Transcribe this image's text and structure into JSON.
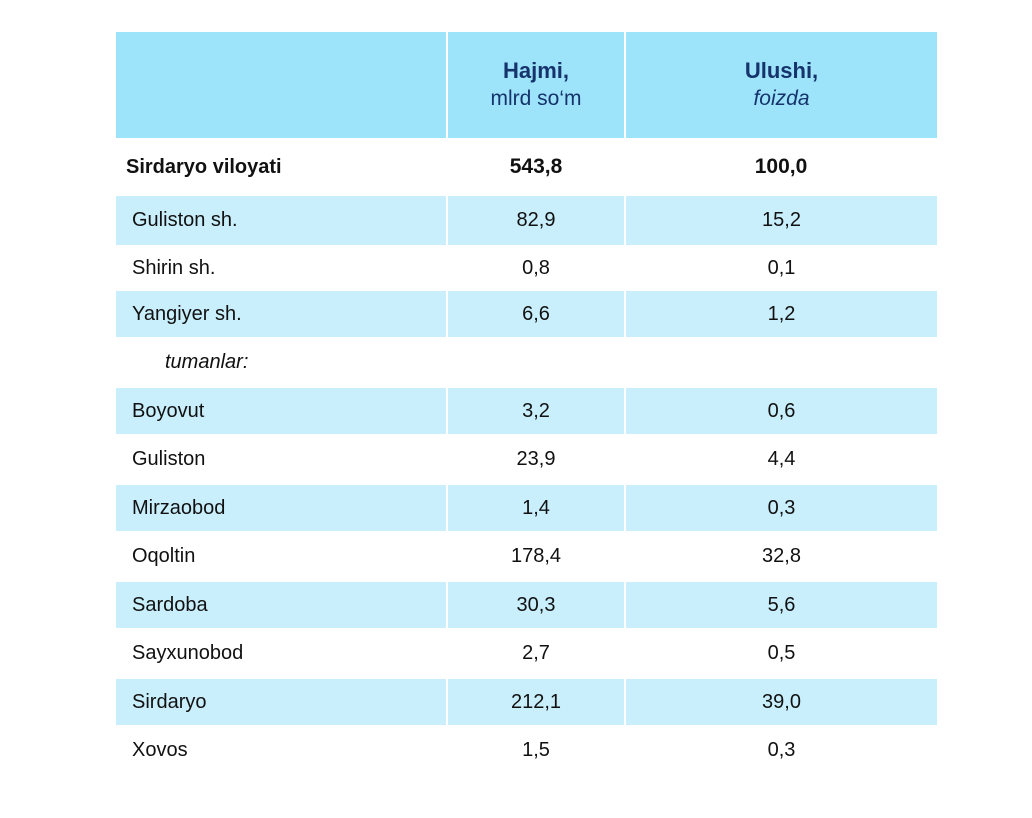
{
  "header": {
    "volume_title": "Hajmi,",
    "volume_unit": "mlrd so‘m",
    "share_title": "Ulushi,",
    "share_unit": "foizda"
  },
  "total": {
    "name": "Sirdaryo viloyati",
    "volume": "543,8",
    "share": "100,0"
  },
  "cities": [
    {
      "name": "Guliston  sh.",
      "volume": "82,9",
      "share": "15,2"
    },
    {
      "name": "Shirin sh.",
      "volume": "0,8",
      "share": "0,1"
    },
    {
      "name": "Yangiyer sh.",
      "volume": "6,6",
      "share": "1,2"
    }
  ],
  "section_label": "tumanlar:",
  "districts": [
    {
      "name": "Boyovut",
      "volume": "3,2",
      "share": "0,6"
    },
    {
      "name": "Guliston",
      "volume": "23,9",
      "share": "4,4"
    },
    {
      "name": "Mirzaobod",
      "volume": "1,4",
      "share": "0,3"
    },
    {
      "name": "Oqoltin",
      "volume": "178,4",
      "share": "32,8"
    },
    {
      "name": "Sardoba",
      "volume": "30,3",
      "share": "5,6"
    },
    {
      "name": "Sayxunobod",
      "volume": "2,7",
      "share": "0,5"
    },
    {
      "name": "Sirdaryo",
      "volume": "212,1",
      "share": "39,0"
    },
    {
      "name": "Xovos",
      "volume": "1,5",
      "share": "0,3"
    }
  ],
  "colors": {
    "header_bg": "#9de4fb",
    "shaded_row_bg": "#c9effc",
    "header_text": "#16336b"
  }
}
